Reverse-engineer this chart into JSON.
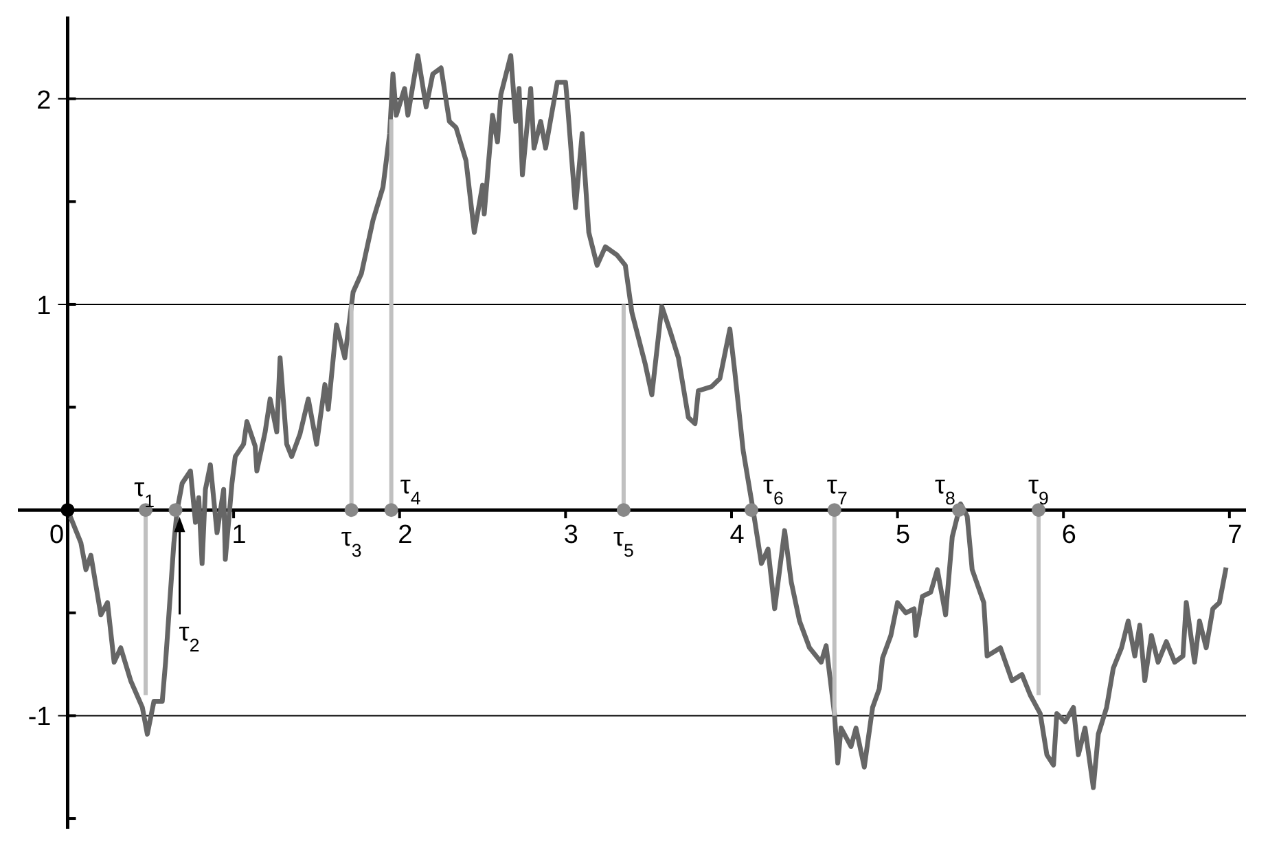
{
  "chart_data": {
    "type": "line",
    "xlim": [
      -0.3,
      7.1
    ],
    "ylim": [
      -1.55,
      2.4
    ],
    "xticks": [
      0,
      1,
      2,
      3,
      4,
      5,
      6,
      7
    ],
    "yticks": [
      {
        "value": -1.5,
        "label": null
      },
      -1,
      {
        "value": -0.5,
        "label": null
      },
      {
        "value": 0,
        "label": null
      },
      {
        "value": 0.5,
        "label": null
      },
      1,
      {
        "value": 1.5,
        "label": null
      },
      2
    ],
    "grid": "y",
    "series": [
      {
        "type": "bar",
        "color": "#c0c0c0",
        "x": [
          0.47,
          1.71,
          1.95,
          3.35,
          4.62,
          5.85
        ],
        "values": [
          -0.9,
          1,
          1.9,
          1,
          -1,
          -0.9
        ]
      },
      {
        "color": "#666666",
        "x": [
          0,
          0.08,
          0.11,
          0.14,
          0.2,
          0.24,
          0.28,
          0.32,
          0.38,
          0.45,
          0.48,
          0.52,
          0.57,
          0.59,
          0.64,
          0.66,
          0.69,
          0.74,
          0.77,
          0.79,
          0.81,
          0.83,
          0.86,
          0.9,
          0.94,
          0.95,
          0.99,
          1.01,
          1.06,
          1.08,
          1.13,
          1.14,
          1.19,
          1.22,
          1.26,
          1.28,
          1.32,
          1.35,
          1.4,
          1.45,
          1.5,
          1.55,
          1.57,
          1.62,
          1.67,
          1.72,
          1.77,
          1.84,
          1.9,
          1.94,
          1.96,
          1.98,
          2.03,
          2.05,
          2.11,
          2.16,
          2.2,
          2.25,
          2.3,
          2.34,
          2.4,
          2.45,
          2.5,
          2.51,
          2.56,
          2.59,
          2.61,
          2.67,
          2.7,
          2.72,
          2.74,
          2.79,
          2.81,
          2.85,
          2.88,
          2.95,
          3,
          3.01,
          3.06,
          3.1,
          3.14,
          3.19,
          3.24,
          3.31,
          3.36,
          3.4,
          3.48,
          3.52,
          3.58,
          3.63,
          3.68,
          3.74,
          3.78,
          3.8,
          3.88,
          3.93,
          3.99,
          4.02,
          4.07,
          4.13,
          4.18,
          4.22,
          4.26,
          4.32,
          4.36,
          4.41,
          4.47,
          4.54,
          4.57,
          4.62,
          4.64,
          4.66,
          4.72,
          4.75,
          4.8,
          4.85,
          4.89,
          4.91,
          4.96,
          5,
          5.05,
          5.1,
          5.11,
          5.15,
          5.2,
          5.24,
          5.29,
          5.33,
          5.38,
          5.42,
          5.45,
          5.52,
          5.54,
          5.62,
          5.69,
          5.75,
          5.8,
          5.86,
          5.9,
          5.94,
          5.96,
          6.01,
          6.06,
          6.09,
          6.13,
          6.18,
          6.21,
          6.26,
          6.3,
          6.35,
          6.39,
          6.43,
          6.46,
          6.49,
          6.53,
          6.57,
          6.62,
          6.67,
          6.72,
          6.74,
          6.79,
          6.82,
          6.86,
          6.9,
          6.94,
          6.98
        ],
        "values": [
          0,
          -0.16,
          -0.29,
          -0.22,
          -0.51,
          -0.45,
          -0.74,
          -0.67,
          -0.83,
          -0.96,
          -1.09,
          -0.93,
          -0.93,
          -0.74,
          -0.16,
          0,
          0.13,
          0.19,
          -0.06,
          0.06,
          -0.26,
          0.1,
          0.22,
          -0.11,
          0.1,
          -0.24,
          0.13,
          0.26,
          0.32,
          0.43,
          0.31,
          0.19,
          0.38,
          0.54,
          0.38,
          0.74,
          0.32,
          0.26,
          0.37,
          0.54,
          0.32,
          0.61,
          0.49,
          0.9,
          0.74,
          1.06,
          1.15,
          1.41,
          1.57,
          1.83,
          2.12,
          1.92,
          2.05,
          1.92,
          2.21,
          1.96,
          2.12,
          2.15,
          1.89,
          1.86,
          1.7,
          1.35,
          1.58,
          1.44,
          1.92,
          1.79,
          2.02,
          2.21,
          1.89,
          2.05,
          1.63,
          2.05,
          1.76,
          1.89,
          1.76,
          2.08,
          2.08,
          1.99,
          1.47,
          1.83,
          1.35,
          1.19,
          1.28,
          1.24,
          1.19,
          0.96,
          0.71,
          0.56,
          0.99,
          0.87,
          0.74,
          0.45,
          0.42,
          0.58,
          0.6,
          0.64,
          0.88,
          0.67,
          0.29,
          0,
          -0.26,
          -0.19,
          -0.48,
          -0.1,
          -0.35,
          -0.54,
          -0.67,
          -0.74,
          -0.66,
          -0.99,
          -1.23,
          -1.06,
          -1.15,
          -1.06,
          -1.25,
          -0.96,
          -0.87,
          -0.72,
          -0.61,
          -0.45,
          -0.5,
          -0.48,
          -0.61,
          -0.42,
          -0.4,
          -0.29,
          -0.51,
          -0.13,
          0.03,
          -0.03,
          -0.29,
          -0.45,
          -0.71,
          -0.67,
          -0.83,
          -0.8,
          -0.9,
          -0.99,
          -1.19,
          -1.24,
          -0.99,
          -1.03,
          -0.96,
          -1.19,
          -1.06,
          -1.35,
          -1.09,
          -0.96,
          -0.77,
          -0.67,
          -0.54,
          -0.71,
          -0.56,
          -0.83,
          -0.61,
          -0.74,
          -0.64,
          -0.74,
          -0.71,
          -0.45,
          -0.74,
          -0.54,
          -0.67,
          -0.48,
          -0.45,
          -0.28
        ]
      },
      {
        "type": "scatter",
        "color": "#888888",
        "x": [
          0.47,
          0.65,
          1.71,
          1.95,
          3.35,
          4.12,
          4.62,
          5.37,
          5.85
        ],
        "values": [
          0,
          0,
          0,
          0,
          0,
          0,
          0,
          0,
          0
        ]
      },
      {
        "type": "scatter",
        "color": "#000000",
        "x": [
          0
        ],
        "values": [
          0
        ]
      }
    ],
    "annotations": [
      {
        "text": "τ$_{1}$",
        "x": 0.47,
        "y": 0
      },
      {
        "text": "τ$_{2}$",
        "x": 0.65,
        "y": 0
      },
      {
        "text": "τ$_{3}$",
        "x": 1.71,
        "y": 0
      },
      {
        "text": "τ$_{4}$",
        "x": 1.95,
        "y": 0
      },
      {
        "text": "τ$_{5}$",
        "x": 3.35,
        "y": 0
      },
      {
        "text": "τ$_{6}$",
        "x": 4.12,
        "y": 0
      },
      {
        "text": "τ$_{7}$",
        "x": 4.62,
        "y": 0
      },
      {
        "text": "τ$_{8}$",
        "x": 5.37,
        "y": 0
      },
      {
        "text": "τ$_{9}$",
        "x": 5.85,
        "y": 0
      }
    ]
  }
}
